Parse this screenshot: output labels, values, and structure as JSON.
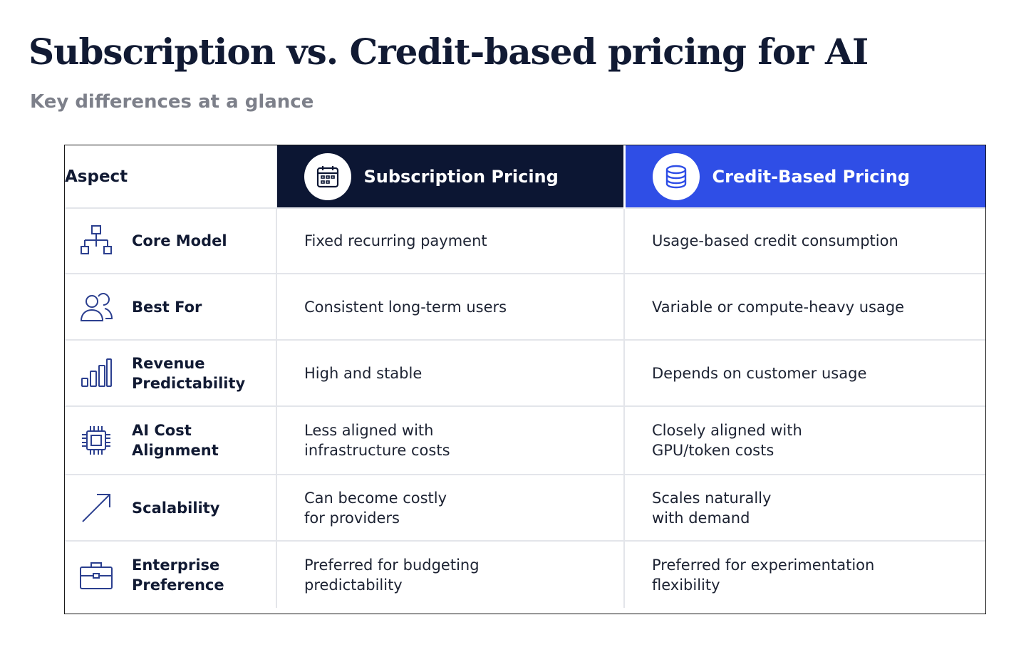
{
  "page": {
    "title": "Subscription vs. Credit-based pricing for AI",
    "subtitle": "Key differences at a glance"
  },
  "table": {
    "headers": {
      "aspect": "Aspect",
      "subscription": "Subscription Pricing",
      "credit": "Credit-Based Pricing"
    },
    "header_icons": {
      "subscription": "calendar-icon",
      "credit": "database-icon"
    },
    "rows": [
      {
        "icon": "hierarchy-icon",
        "aspect": "Core Model",
        "subscription": "Fixed recurring payment",
        "credit": "Usage-based credit consumption"
      },
      {
        "icon": "users-icon",
        "aspect": "Best For",
        "subscription": "Consistent long-term users",
        "credit": "Variable or compute-heavy usage"
      },
      {
        "icon": "bar-chart-icon",
        "aspect": "Revenue\nPredictability",
        "subscription": "High and stable",
        "credit": "Depends on customer usage"
      },
      {
        "icon": "chip-icon",
        "aspect": "AI Cost\nAlignment",
        "subscription": "Less aligned with\ninfrastructure costs",
        "credit": "Closely aligned with\nGPU/token costs"
      },
      {
        "icon": "arrow-up-right-icon",
        "aspect": "Scalability",
        "subscription": "Can become costly\nfor providers",
        "credit": "Scales naturally\nwith demand"
      },
      {
        "icon": "briefcase-icon",
        "aspect": "Enterprise\nPreference",
        "subscription": "Preferred for budgeting\npredictability",
        "credit": "Preferred for experimentation\nflexibility"
      }
    ]
  },
  "colors": {
    "subscription_header": "#0c1633",
    "credit_header": "#2f4ee6",
    "icon_stroke": "#2b3f8f",
    "subtitle": "#7d808a"
  }
}
